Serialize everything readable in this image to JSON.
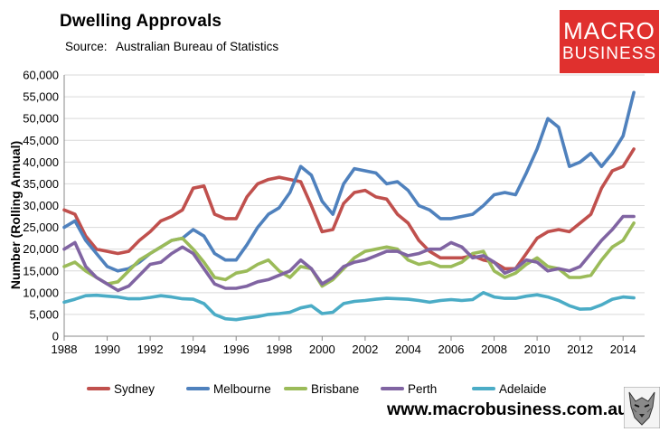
{
  "header": {
    "title": "Dwelling Approvals",
    "source_label": "Source:",
    "source_value": "Australian Bureau of Statistics"
  },
  "logo": {
    "line1": "MACRO",
    "line2": "BUSINESS",
    "bg": "#e0302e"
  },
  "footer": {
    "url": "www.macrobusiness.com.au"
  },
  "chart_data": {
    "type": "line",
    "title": "Dwelling Approvals",
    "xlabel": "",
    "ylabel": "Number (Rolling Annual)",
    "xlim": [
      1988,
      2015
    ],
    "ylim": [
      0,
      60000
    ],
    "grid": true,
    "legend_position": "bottom",
    "x_ticks": [
      "1988",
      "1990",
      "1992",
      "1994",
      "1996",
      "1998",
      "2000",
      "2002",
      "2004",
      "2006",
      "2008",
      "2010",
      "2012",
      "2014"
    ],
    "x_tick_values": [
      1988,
      1990,
      1992,
      1994,
      1996,
      1998,
      2000,
      2002,
      2004,
      2006,
      2008,
      2010,
      2012,
      2014
    ],
    "y_ticks": [
      "0",
      "5,000",
      "10,000",
      "15,000",
      "20,000",
      "25,000",
      "30,000",
      "35,000",
      "40,000",
      "45,000",
      "50,000",
      "55,000",
      "60,000"
    ],
    "y_tick_values": [
      0,
      5000,
      10000,
      15000,
      20000,
      25000,
      30000,
      35000,
      40000,
      45000,
      50000,
      55000,
      60000
    ],
    "series": [
      {
        "name": "Sydney",
        "color": "#c0504d",
        "x": [
          1988,
          1988.5,
          1989,
          1989.5,
          1990,
          1990.5,
          1991,
          1991.5,
          1992,
          1992.5,
          1993,
          1993.5,
          1994,
          1994.5,
          1995,
          1995.5,
          1996,
          1996.5,
          1997,
          1997.5,
          1998,
          1998.5,
          1999,
          1999.5,
          2000,
          2000.5,
          2001,
          2001.5,
          2002,
          2002.5,
          2003,
          2003.5,
          2004,
          2004.5,
          2005,
          2005.5,
          2006,
          2006.5,
          2007,
          2007.5,
          2008,
          2008.5,
          2009,
          2009.5,
          2010,
          2010.5,
          2011,
          2011.5,
          2012,
          2012.5,
          2013,
          2013.5,
          2014,
          2014.5
        ],
        "values": [
          29000,
          28000,
          23000,
          20000,
          19500,
          19000,
          19500,
          22000,
          24000,
          26500,
          27500,
          29000,
          34000,
          34500,
          28000,
          27000,
          27000,
          32000,
          35000,
          36000,
          36500,
          36000,
          35500,
          30000,
          24000,
          24500,
          30500,
          33000,
          33500,
          32000,
          31500,
          28000,
          26000,
          22000,
          19500,
          18000,
          18000,
          18000,
          18500,
          17500,
          17000,
          15500,
          15500,
          19000,
          22500,
          24000,
          24500,
          24000,
          26000,
          28000,
          34000,
          38000,
          39000,
          43000
        ]
      },
      {
        "name": "Melbourne",
        "color": "#4f81bd",
        "x": [
          1988,
          1988.5,
          1989,
          1989.5,
          1990,
          1990.5,
          1991,
          1991.5,
          1992,
          1992.5,
          1993,
          1993.5,
          1994,
          1994.5,
          1995,
          1995.5,
          1996,
          1996.5,
          1997,
          1997.5,
          1998,
          1998.5,
          1999,
          1999.5,
          2000,
          2000.5,
          2001,
          2001.5,
          2002,
          2002.5,
          2003,
          2003.5,
          2004,
          2004.5,
          2005,
          2005.5,
          2006,
          2006.5,
          2007,
          2007.5,
          2008,
          2008.5,
          2009,
          2009.5,
          2010,
          2010.5,
          2011,
          2011.5,
          2012,
          2012.5,
          2013,
          2013.5,
          2014,
          2014.5
        ],
        "values": [
          25000,
          26500,
          22000,
          19000,
          16000,
          15000,
          15500,
          17000,
          19000,
          20500,
          22000,
          22500,
          24500,
          23000,
          19000,
          17500,
          17500,
          21000,
          25000,
          28000,
          29500,
          33000,
          39000,
          37000,
          31000,
          28000,
          35000,
          38500,
          38000,
          37500,
          35000,
          35500,
          33500,
          30000,
          29000,
          27000,
          27000,
          27500,
          28000,
          30000,
          32500,
          33000,
          32500,
          37500,
          43000,
          50000,
          48000,
          39000,
          40000,
          42000,
          39000,
          42000,
          46000,
          56000
        ]
      },
      {
        "name": "Brisbane",
        "color": "#9bbb59",
        "x": [
          1988,
          1988.5,
          1989,
          1989.5,
          1990,
          1990.5,
          1991,
          1991.5,
          1992,
          1992.5,
          1993,
          1993.5,
          1994,
          1994.5,
          1995,
          1995.5,
          1996,
          1996.5,
          1997,
          1997.5,
          1998,
          1998.5,
          1999,
          1999.5,
          2000,
          2000.5,
          2001,
          2001.5,
          2002,
          2002.5,
          2003,
          2003.5,
          2004,
          2004.5,
          2005,
          2005.5,
          2006,
          2006.5,
          2007,
          2007.5,
          2008,
          2008.5,
          2009,
          2009.5,
          2010,
          2010.5,
          2011,
          2011.5,
          2012,
          2012.5,
          2013,
          2013.5,
          2014,
          2014.5
        ],
        "values": [
          16000,
          17000,
          15000,
          13500,
          12000,
          12500,
          15000,
          17500,
          19000,
          20500,
          22000,
          22500,
          20000,
          17000,
          13500,
          13000,
          14500,
          15000,
          16500,
          17500,
          15000,
          13500,
          16000,
          15500,
          11500,
          13000,
          15500,
          18000,
          19500,
          20000,
          20500,
          20000,
          17500,
          16500,
          17000,
          16000,
          16000,
          17000,
          19000,
          19500,
          15000,
          13500,
          14500,
          16500,
          18000,
          16000,
          15500,
          13500,
          13500,
          14000,
          17500,
          20500,
          22000,
          26000
        ]
      },
      {
        "name": "Perth",
        "color": "#8064a2",
        "x": [
          1988,
          1988.5,
          1989,
          1989.5,
          1990,
          1990.5,
          1991,
          1991.5,
          1992,
          1992.5,
          1993,
          1993.5,
          1994,
          1994.5,
          1995,
          1995.5,
          1996,
          1996.5,
          1997,
          1997.5,
          1998,
          1998.5,
          1999,
          1999.5,
          2000,
          2000.5,
          2001,
          2001.5,
          2002,
          2002.5,
          2003,
          2003.5,
          2004,
          2004.5,
          2005,
          2005.5,
          2006,
          2006.5,
          2007,
          2007.5,
          2008,
          2008.5,
          2009,
          2009.5,
          2010,
          2010.5,
          2011,
          2011.5,
          2012,
          2012.5,
          2013,
          2013.5,
          2014,
          2014.5
        ],
        "values": [
          20000,
          21500,
          16000,
          13500,
          12000,
          10500,
          11500,
          14000,
          16500,
          17000,
          19000,
          20500,
          19000,
          15500,
          12000,
          11000,
          11000,
          11500,
          12500,
          13000,
          14000,
          15000,
          17500,
          15500,
          12000,
          13500,
          16000,
          17000,
          17500,
          18500,
          19500,
          19500,
          18500,
          19000,
          20000,
          20000,
          21500,
          20500,
          18000,
          18500,
          17000,
          14500,
          15500,
          17500,
          17000,
          15000,
          15500,
          15000,
          16000,
          19000,
          22000,
          24500,
          27500,
          27500
        ]
      },
      {
        "name": "Adelaide",
        "color": "#4bacc6",
        "x": [
          1988,
          1988.5,
          1989,
          1989.5,
          1990,
          1990.5,
          1991,
          1991.5,
          1992,
          1992.5,
          1993,
          1993.5,
          1994,
          1994.5,
          1995,
          1995.5,
          1996,
          1996.5,
          1997,
          1997.5,
          1998,
          1998.5,
          1999,
          1999.5,
          2000,
          2000.5,
          2001,
          2001.5,
          2002,
          2002.5,
          2003,
          2003.5,
          2004,
          2004.5,
          2005,
          2005.5,
          2006,
          2006.5,
          2007,
          2007.5,
          2008,
          2008.5,
          2009,
          2009.5,
          2010,
          2010.5,
          2011,
          2011.5,
          2012,
          2012.5,
          2013,
          2013.5,
          2014,
          2014.5
        ],
        "values": [
          7800,
          8500,
          9300,
          9400,
          9200,
          9000,
          8600,
          8600,
          8900,
          9300,
          9000,
          8600,
          8500,
          7500,
          5000,
          4000,
          3800,
          4200,
          4500,
          5000,
          5200,
          5500,
          6500,
          7000,
          5200,
          5500,
          7500,
          8000,
          8200,
          8500,
          8700,
          8600,
          8500,
          8200,
          7800,
          8200,
          8400,
          8200,
          8400,
          10000,
          9000,
          8700,
          8700,
          9200,
          9500,
          9000,
          8200,
          7000,
          6200,
          6300,
          7200,
          8500,
          9000,
          8800
        ]
      }
    ]
  }
}
